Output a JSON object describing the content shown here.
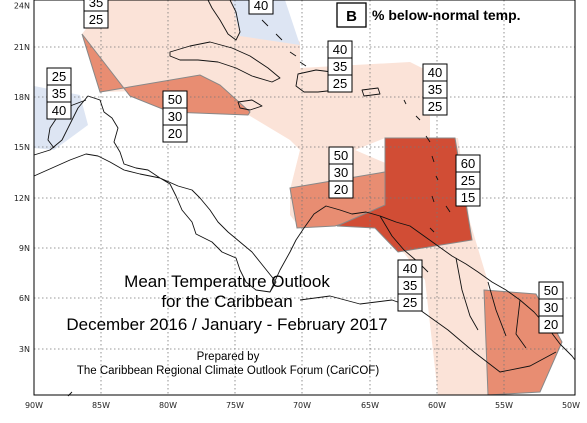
{
  "map": {
    "title": [
      "Mean Temperature Outlook",
      "for the Caribbean",
      "December 2016 / January - February 2017"
    ],
    "prepared_by": [
      "Prepared by",
      "The Caribbean Regional Climate Outlook Forum (CariCOF)"
    ],
    "legend": {
      "key": "B",
      "label": "% below-normal temp."
    },
    "longitude_ticks": [
      "90W",
      "85W",
      "80W",
      "75W",
      "70W",
      "65W",
      "60W",
      "55W",
      "50W"
    ],
    "latitude_ticks": [
      "3N",
      "6N",
      "9N",
      "12N",
      "15N",
      "18N",
      "21N",
      "24N"
    ],
    "colors": {
      "light_pink": "#fbe3d8",
      "light_blue": "#dde5f3",
      "salmon": "#e88d72",
      "orange_red": "#e46f53",
      "dark_red": "#d14d35"
    },
    "probability_boxes": [
      {
        "values": [
          "35",
          "25"
        ]
      },
      {
        "values": [
          "40"
        ]
      },
      {
        "values": [
          "25",
          "35",
          "40"
        ]
      },
      {
        "values": [
          "40",
          "35",
          "25"
        ]
      },
      {
        "values": [
          "40",
          "35",
          "25"
        ]
      },
      {
        "values": [
          "50",
          "30",
          "20"
        ]
      },
      {
        "values": [
          "50",
          "30",
          "20"
        ]
      },
      {
        "values": [
          "60",
          "25",
          "15"
        ]
      },
      {
        "values": [
          "40",
          "35",
          "25"
        ]
      },
      {
        "values": [
          "50",
          "30",
          "20"
        ]
      }
    ]
  }
}
